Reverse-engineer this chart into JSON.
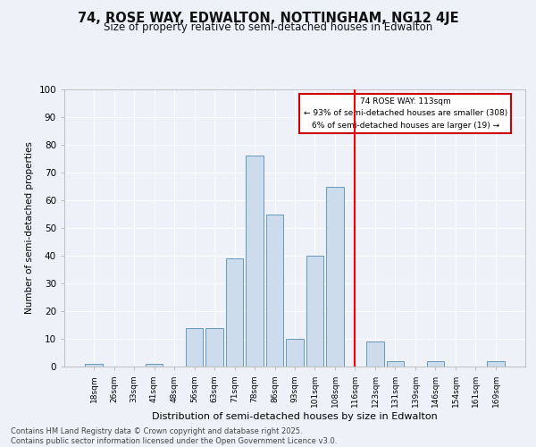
{
  "title": "74, ROSE WAY, EDWALTON, NOTTINGHAM, NG12 4JE",
  "subtitle": "Size of property relative to semi-detached houses in Edwalton",
  "xlabel": "Distribution of semi-detached houses by size in Edwalton",
  "ylabel": "Number of semi-detached properties",
  "bin_labels": [
    "18sqm",
    "26sqm",
    "33sqm",
    "41sqm",
    "48sqm",
    "56sqm",
    "63sqm",
    "71sqm",
    "78sqm",
    "86sqm",
    "93sqm",
    "101sqm",
    "108sqm",
    "116sqm",
    "123sqm",
    "131sqm",
    "139sqm",
    "146sqm",
    "154sqm",
    "161sqm",
    "169sqm"
  ],
  "bar_heights": [
    1,
    0,
    0,
    1,
    0,
    14,
    14,
    39,
    76,
    55,
    10,
    40,
    65,
    0,
    9,
    2,
    0,
    2,
    0,
    0,
    2
  ],
  "bar_color": "#ccdcec",
  "bar_edge_color": "#6699bb",
  "red_line_x": 13.0,
  "annotation_line1": "74 ROSE WAY: 113sqm",
  "annotation_line2": "← 93% of semi-detached houses are smaller (308)",
  "annotation_line3": "6% of semi-detached houses are larger (19) →",
  "footer1": "Contains HM Land Registry data © Crown copyright and database right 2025.",
  "footer2": "Contains public sector information licensed under the Open Government Licence v3.0.",
  "bg_color": "#eef2f8",
  "grid_color": "white",
  "ylim": [
    0,
    100
  ],
  "yticks": [
    0,
    10,
    20,
    30,
    40,
    50,
    60,
    70,
    80,
    90,
    100
  ]
}
